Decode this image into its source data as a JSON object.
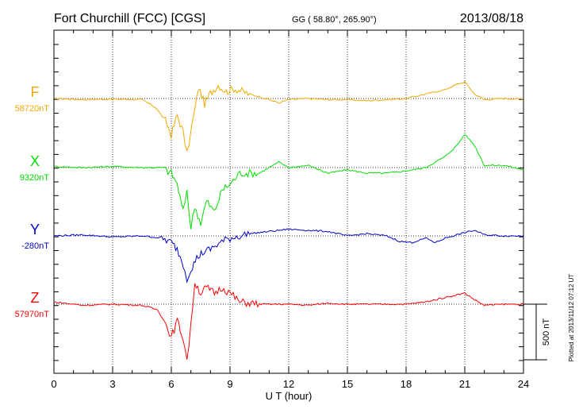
{
  "header": {
    "station": "Fort Churchill (FCC)  [CGS]",
    "coords": "GG ( 58.80°, 265.90°)",
    "date": "2013/08/18"
  },
  "footer": {
    "plotted": "Plotted at 2013/11/12 07:12 UT"
  },
  "chart_data": {
    "type": "line",
    "xlabel": "U T (hour)",
    "xlim": [
      0,
      24
    ],
    "xticks": [
      "0",
      "3",
      "6",
      "9",
      "12",
      "15",
      "18",
      "21",
      "24"
    ],
    "grid": true,
    "scale_bar": {
      "label": "500 nT",
      "value": 500
    },
    "series": [
      {
        "name": "F",
        "baseline_label": "58720nT",
        "color": "#f0a800",
        "x": [
          0,
          1.5,
          3,
          4.5,
          5.2,
          5.7,
          6.0,
          6.3,
          6.6,
          6.8,
          7.0,
          7.2,
          7.4,
          7.7,
          8.0,
          8.4,
          8.8,
          9.2,
          10,
          11,
          11.5,
          12,
          13,
          14,
          15,
          16,
          17,
          18,
          19,
          20,
          20.5,
          21,
          21.5,
          22,
          23,
          24
        ],
        "y": [
          0,
          -10,
          -5,
          -10,
          -80,
          -200,
          -330,
          -150,
          -300,
          -500,
          -300,
          -100,
          100,
          -50,
          50,
          120,
          60,
          90,
          40,
          -10,
          -40,
          -10,
          0,
          -10,
          -10,
          -20,
          -10,
          0,
          40,
          80,
          120,
          150,
          40,
          -10,
          0,
          -5
        ]
      },
      {
        "name": "X",
        "baseline_label": "9320nT",
        "color": "#00dd00",
        "x": [
          0,
          1.5,
          3,
          4.5,
          5.5,
          6.0,
          6.3,
          6.6,
          6.8,
          7.0,
          7.2,
          7.5,
          7.8,
          8.2,
          8.6,
          9.0,
          9.5,
          10.5,
          11.5,
          12,
          13,
          14,
          15,
          16,
          17,
          18,
          19,
          20,
          20.6,
          21,
          21.5,
          22,
          23,
          24
        ],
        "y": [
          10,
          0,
          10,
          0,
          0,
          -50,
          -150,
          -400,
          -200,
          -550,
          -350,
          -500,
          -300,
          -400,
          -200,
          -150,
          -50,
          -50,
          50,
          0,
          20,
          -50,
          -20,
          -50,
          -50,
          -30,
          0,
          100,
          200,
          300,
          200,
          20,
          20,
          -20
        ]
      },
      {
        "name": "Y",
        "baseline_label": "-280nT",
        "color": "#0000cc",
        "x": [
          0,
          1.5,
          3,
          4.5,
          5.5,
          6.0,
          6.3,
          6.6,
          6.8,
          7.0,
          7.3,
          7.6,
          8.0,
          8.5,
          9.0,
          10,
          11,
          12,
          13,
          14,
          15,
          16,
          17,
          17.7,
          18.3,
          19,
          19.5,
          20,
          21,
          21.5,
          22,
          23,
          24
        ],
        "y": [
          0,
          10,
          -10,
          0,
          -20,
          -60,
          -120,
          -250,
          -380,
          -300,
          -200,
          -150,
          -120,
          -60,
          -20,
          20,
          40,
          60,
          50,
          40,
          0,
          20,
          0,
          -50,
          -60,
          -20,
          -60,
          -20,
          30,
          50,
          10,
          0,
          0
        ]
      },
      {
        "name": "Z",
        "baseline_label": "57970nT",
        "color": "#ff0000",
        "x": [
          0,
          1.5,
          3,
          4.5,
          5.3,
          5.8,
          6.0,
          6.3,
          6.6,
          6.8,
          7.0,
          7.2,
          7.5,
          7.8,
          8.2,
          8.6,
          9.0,
          9.5,
          10.5,
          12,
          13,
          14,
          15,
          16,
          17,
          18,
          19,
          20,
          21,
          21.5,
          22,
          23,
          24
        ],
        "y": [
          20,
          -10,
          0,
          -10,
          -50,
          -200,
          -300,
          -150,
          -300,
          -500,
          -200,
          200,
          100,
          150,
          100,
          150,
          100,
          20,
          0,
          0,
          -10,
          10,
          0,
          0,
          0,
          0,
          20,
          60,
          100,
          40,
          -10,
          0,
          0
        ]
      }
    ]
  }
}
